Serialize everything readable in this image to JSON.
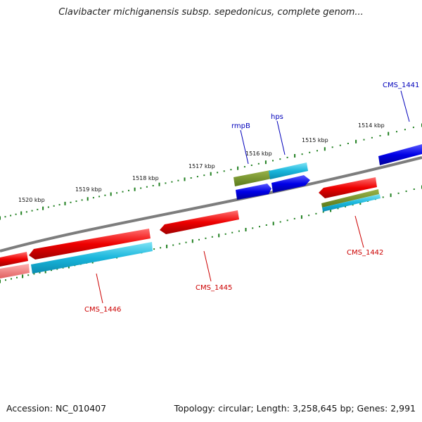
{
  "title": "Clavibacter michiganensis subsp. sepedonicus, complete genom...",
  "footer": {
    "accession": "Accession: NC_010407",
    "summary": "Topology: circular; Length: 3,258,645 bp; Genes: 2,991"
  },
  "colors": {
    "backbone": "#7d7d7d",
    "tick": "#1f7f1f",
    "red_gene": "#e80000",
    "blue_gene": "#0000e0",
    "cyan_gene": "#1ab8d8",
    "olive_gene": "#6b8e23",
    "label_red": "#cc0000",
    "label_blue": "#0000bb"
  },
  "ruler": {
    "labels": [
      "1520 kbp",
      "1519 kbp",
      "1518 kbp",
      "1517 kbp",
      "1516 kbp",
      "1515 kbp",
      "1514 kbp"
    ]
  },
  "genes": {
    "labels": [
      "CMS_1441",
      "hps",
      "rmpB",
      "CMS_1442",
      "CMS_1445",
      "CMS_1446"
    ]
  }
}
